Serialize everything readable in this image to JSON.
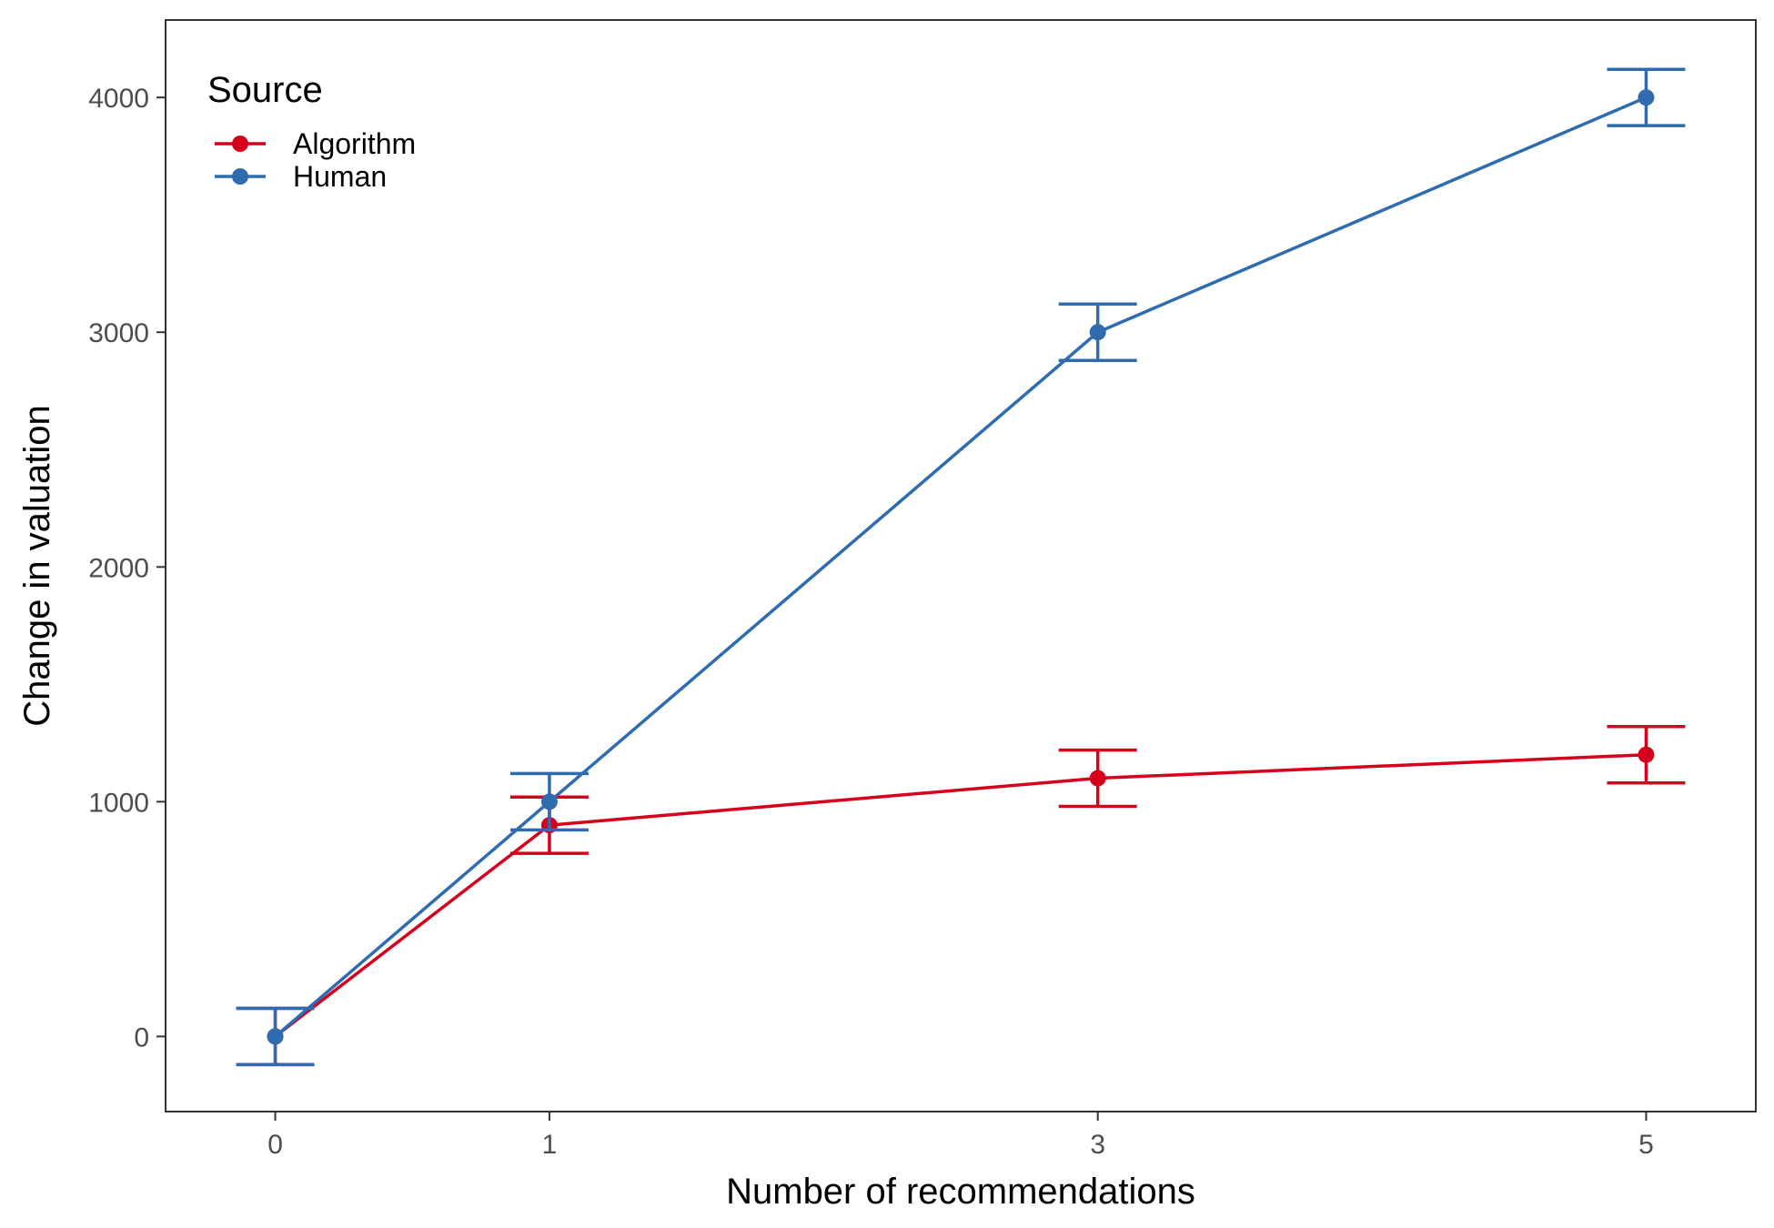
{
  "chart_data": {
    "type": "line",
    "xlabel": "Number of recommendations",
    "ylabel": "Change in valuation",
    "x": [
      0,
      1,
      3,
      5
    ],
    "x_tick_labels": [
      "0",
      "1",
      "3",
      "5"
    ],
    "xlim": [
      -0.4,
      5.4
    ],
    "y_ticks": [
      0,
      1000,
      2000,
      3000,
      4000
    ],
    "y_tick_labels": [
      "0",
      "1000",
      "2000",
      "3000",
      "4000"
    ],
    "ylim": [
      -320,
      4330
    ],
    "grid": false,
    "legend": {
      "title": "Source",
      "placement": "top-left"
    },
    "series": [
      {
        "name": "Algorithm",
        "color": "#D7001C",
        "values": [
          0,
          900,
          1100,
          1200
        ],
        "error_low": [
          -120,
          780,
          980,
          1080
        ],
        "error_high": [
          120,
          1020,
          1220,
          1320
        ]
      },
      {
        "name": "Human",
        "color": "#2E6BAF",
        "values": [
          0,
          1000,
          3000,
          4000
        ],
        "error_low": [
          -120,
          880,
          2880,
          3880
        ],
        "error_high": [
          120,
          1120,
          3120,
          4120
        ]
      }
    ]
  }
}
